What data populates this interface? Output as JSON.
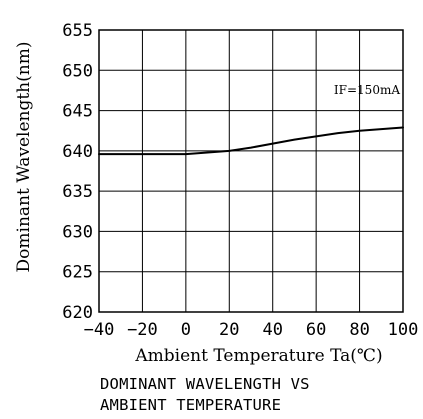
{
  "chart_data": {
    "type": "line",
    "title": "",
    "caption_lines": [
      "DOMINANT WAVELENGTH VS",
      "AMBIENT TEMPERATURE"
    ],
    "xlabel": "Ambient Temperature Ta(℃)",
    "ylabel": "Dominant Wavelength(nm)",
    "xlim": [
      -40,
      100
    ],
    "ylim": [
      620,
      655
    ],
    "x_ticks": [
      -40,
      -20,
      0,
      20,
      40,
      60,
      80,
      100
    ],
    "x_tick_labels": [
      "−40",
      "−20",
      "0",
      "20",
      "40",
      "60",
      "80",
      "100"
    ],
    "y_ticks": [
      620,
      625,
      630,
      635,
      640,
      645,
      650,
      655
    ],
    "y_tick_labels": [
      "620",
      "625",
      "630",
      "635",
      "640",
      "645",
      "650",
      "655"
    ],
    "grid": true,
    "annotation": "IF=150mA",
    "series": [
      {
        "x": [
          -40,
          -20,
          0,
          10,
          20,
          30,
          40,
          50,
          60,
          70,
          80,
          90,
          100
        ],
        "y": [
          639.6,
          639.6,
          639.6,
          639.8,
          640.0,
          640.4,
          640.9,
          641.4,
          641.8,
          642.2,
          642.5,
          642.7,
          642.9
        ]
      }
    ],
    "colors": {
      "line": "#000000",
      "grid": "#000000",
      "background": "#ffffff"
    }
  }
}
